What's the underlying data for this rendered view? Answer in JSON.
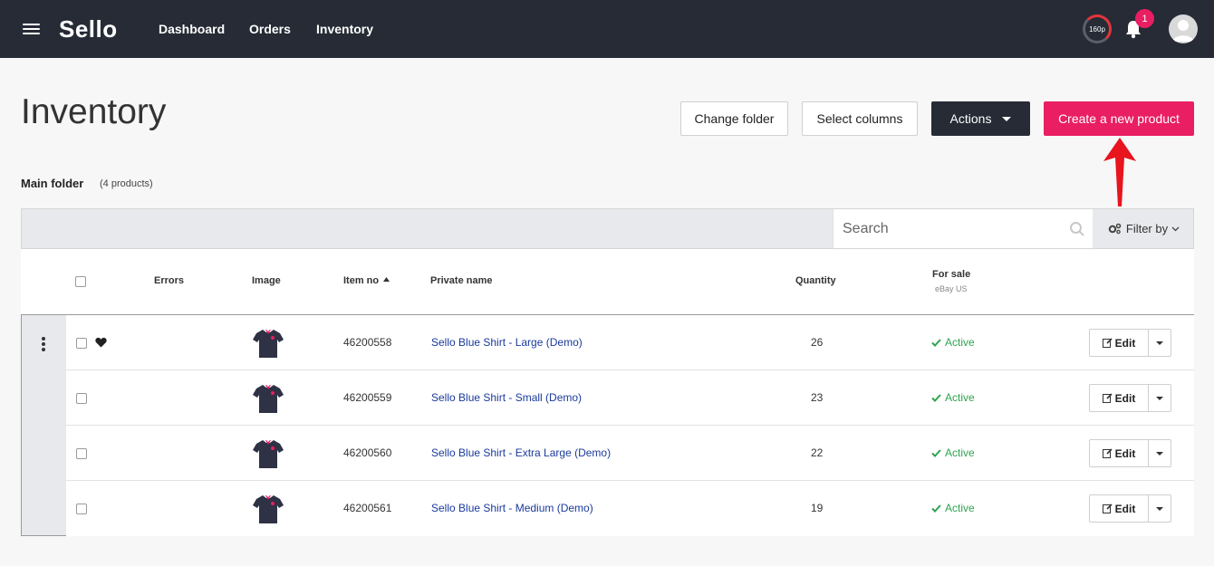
{
  "header": {
    "brand": "Sello",
    "nav": [
      "Dashboard",
      "Orders",
      "Inventory"
    ],
    "quota_label": "160p",
    "notification_count": "1"
  },
  "page": {
    "title": "Inventory",
    "buttons": {
      "change_folder": "Change folder",
      "select_columns": "Select columns",
      "actions": "Actions",
      "create_product": "Create a new product"
    },
    "folder": {
      "name": "Main folder",
      "count": "(4 products)"
    }
  },
  "toolbar": {
    "search_placeholder": "Search",
    "filter_label": "Filter by"
  },
  "table": {
    "columns": {
      "errors": "Errors",
      "image": "Image",
      "item_no": "Item no",
      "private_name": "Private name",
      "quantity": "Quantity",
      "for_sale": "For sale",
      "for_sale_sub": "eBay US"
    },
    "edit_label": "Edit",
    "rows": [
      {
        "item_no": "46200558",
        "name": "Sello Blue Shirt - Large (Demo)",
        "quantity": "26",
        "status": "Active"
      },
      {
        "item_no": "46200559",
        "name": "Sello Blue Shirt - Small (Demo)",
        "quantity": "23",
        "status": "Active"
      },
      {
        "item_no": "46200560",
        "name": "Sello Blue Shirt - Extra Large (Demo)",
        "quantity": "22",
        "status": "Active"
      },
      {
        "item_no": "46200561",
        "name": "Sello Blue Shirt - Medium (Demo)",
        "quantity": "19",
        "status": "Active"
      }
    ]
  },
  "colors": {
    "nav_bg": "#262b36",
    "accent_pink": "#e91e63",
    "status_green": "#2ea44f",
    "link_blue": "#1a3a9c"
  }
}
